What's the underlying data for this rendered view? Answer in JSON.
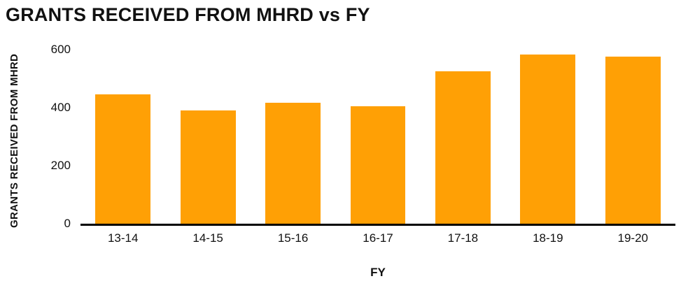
{
  "chart_data": {
    "type": "bar",
    "title": "GRANTS RECEIVED FROM MHRD vs FY",
    "xlabel": "FY",
    "ylabel": "GRANTS RECEIVED FROM MHRD",
    "categories": [
      "13-14",
      "14-15",
      "15-16",
      "16-17",
      "17-18",
      "18-19",
      "19-20"
    ],
    "values": [
      445,
      390,
      418,
      405,
      525,
      583,
      577
    ],
    "ylim": [
      0,
      600
    ],
    "yticks": [
      0,
      200,
      400,
      600
    ],
    "grid": "off",
    "legend": "none",
    "bar_color": "#FFA005",
    "axis_color": "#000000",
    "text_color": "#111111"
  }
}
